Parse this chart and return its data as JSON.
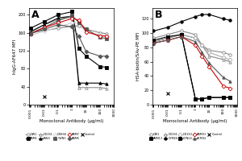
{
  "x": [
    0.001,
    0.01,
    0.1,
    1,
    3,
    10,
    100,
    300
  ],
  "panel_A": {
    "title": "A",
    "ylabel": "hIgG-AF647 MFI",
    "xlabel": "Monoclonal Antibody (μg/ml)",
    "ylim": [
      0,
      215
    ],
    "yticks": [
      0,
      40,
      80,
      120,
      160,
      200
    ],
    "series": [
      {
        "label": "DW1",
        "marker": "o",
        "fill": false,
        "color": "#888888",
        "lw": 0.8,
        "values": [
          160,
          165,
          170,
          175,
          175,
          168,
          160,
          158
        ]
      },
      {
        "label": "ABM1",
        "marker": "s",
        "fill": true,
        "color": "#000000",
        "lw": 0.8,
        "values": [
          170,
          185,
          200,
          207,
          125,
          108,
          85,
          83
        ]
      },
      {
        "label": "DX1S1",
        "marker": "^",
        "fill": false,
        "color": "#888888",
        "lw": 0.8,
        "values": [
          162,
          178,
          190,
          195,
          38,
          38,
          38,
          36
        ]
      },
      {
        "label": "CAN3",
        "marker": "^",
        "fill": true,
        "color": "#000000",
        "lw": 0.8,
        "values": [
          162,
          178,
          193,
          197,
          48,
          48,
          48,
          46
        ]
      },
      {
        "label": "DX6S8",
        "marker": "o",
        "fill": false,
        "color": "#cccccc",
        "lw": 0.8,
        "values": [
          155,
          163,
          173,
          182,
          182,
          162,
          155,
          152
        ]
      },
      {
        "label": "YWN3",
        "marker": "s",
        "fill": true,
        "color": "#555555",
        "lw": 0.8,
        "values": [
          158,
          172,
          187,
          198,
          183,
          168,
          150,
          147
        ]
      },
      {
        "label": "ABM7",
        "marker": "D",
        "fill": false,
        "color": "#cc0000",
        "lw": 0.8,
        "values": [
          158,
          172,
          182,
          192,
          188,
          162,
          153,
          153
        ]
      },
      {
        "label": "ABM5",
        "marker": "D",
        "fill": true,
        "color": "#555555",
        "lw": 0.8,
        "values": [
          158,
          168,
          178,
          173,
          152,
          118,
          108,
          108
        ]
      },
      {
        "label": "Control",
        "marker": "x",
        "fill": false,
        "color": "#000000",
        "lw": 0.8,
        "values": [
          null,
          18,
          null,
          null,
          null,
          null,
          null,
          null
        ]
      }
    ],
    "legend": [
      "-o- DW1",
      "-■- ABM1",
      "-△- DX1S1",
      "-▲- CAN3",
      "-o- DX6S8",
      "-■- YWN3",
      "-◆- ABM7",
      "-◆- ABM5",
      "-x- Control"
    ]
  },
  "panel_B": {
    "title": "B",
    "ylabel": "HSA-biotin/SAv-PE MFI",
    "xlabel": "Monoclonal Antibody (μg/ml)",
    "ylim": [
      0,
      135
    ],
    "yticks": [
      0,
      20,
      40,
      60,
      80,
      100,
      120
    ],
    "series": [
      {
        "label": "DW1",
        "marker": "o",
        "fill": false,
        "color": "#888888",
        "lw": 0.8,
        "values": [
          93,
          98,
          103,
          98,
          83,
          76,
          73,
          70
        ]
      },
      {
        "label": "ABM11",
        "marker": "s",
        "fill": true,
        "color": "#000000",
        "lw": 0.8,
        "values": [
          88,
          93,
          98,
          8,
          8,
          10,
          10,
          10
        ]
      },
      {
        "label": "DX1S1",
        "marker": "^",
        "fill": false,
        "color": "#888888",
        "lw": 0.8,
        "values": [
          88,
          93,
          98,
          93,
          83,
          68,
          63,
          60
        ]
      },
      {
        "label": "DYM20",
        "marker": "o",
        "fill": true,
        "color": "#000000",
        "lw": 0.8,
        "values": [
          103,
          108,
          116,
          123,
          126,
          126,
          120,
          118
        ]
      },
      {
        "label": "DX1S3",
        "marker": "D",
        "fill": false,
        "color": "#aaaaaa",
        "lw": 0.8,
        "values": [
          88,
          93,
          98,
          93,
          83,
          73,
          66,
          63
        ]
      },
      {
        "label": "DYN24",
        "marker": "s",
        "fill": true,
        "color": "#000000",
        "lw": 0.8,
        "values": [
          90,
          95,
          98,
          8,
          8,
          10,
          10,
          10
        ]
      },
      {
        "label": "ABM31",
        "marker": "D",
        "fill": false,
        "color": "#cc0000",
        "lw": 0.8,
        "values": [
          86,
          90,
          95,
          83,
          68,
          53,
          26,
          23
        ]
      },
      {
        "label": "ACM32",
        "marker": "^",
        "fill": true,
        "color": "#555555",
        "lw": 0.8,
        "values": [
          86,
          90,
          95,
          88,
          73,
          58,
          38,
          33
        ]
      },
      {
        "label": "Control",
        "marker": "x",
        "fill": false,
        "color": "#000000",
        "lw": 0.8,
        "values": [
          null,
          16,
          null,
          null,
          null,
          null,
          null,
          null
        ]
      }
    ]
  }
}
